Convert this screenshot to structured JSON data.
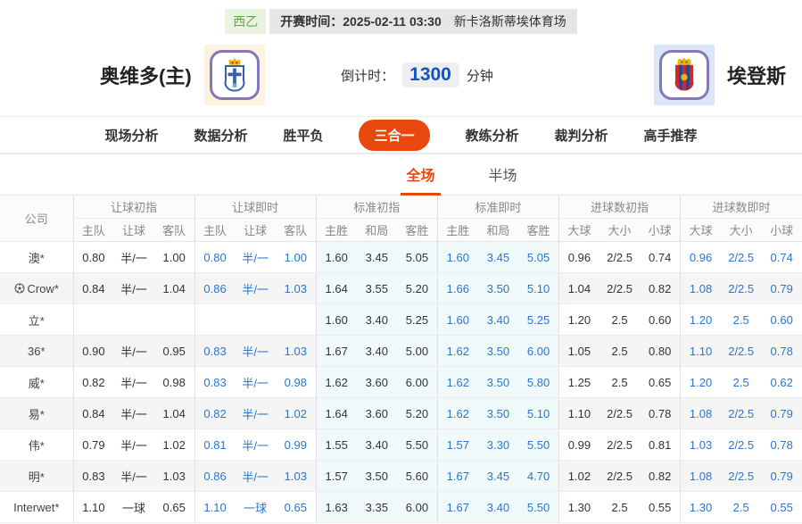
{
  "colors": {
    "accent_orange": "#e8480d",
    "live_blue": "#2b76cb",
    "countdown_blue": "#1353c4",
    "league_green": "#5faa3c",
    "standard_col_bg": "#f0fafa"
  },
  "match_bar": {
    "league": "西乙",
    "kickoff_label": "开赛时间：",
    "kickoff_time": "2025-02-11 03:30",
    "venue": "新卡洛斯蒂埃体育场"
  },
  "teams": {
    "home": {
      "name": "奥维多(主)"
    },
    "away": {
      "name": "埃登斯"
    }
  },
  "countdown": {
    "label": "倒计时：",
    "value": "1300",
    "unit": "分钟"
  },
  "nav_tabs": [
    {
      "label": "现场分析",
      "active": false
    },
    {
      "label": "数据分析",
      "active": false
    },
    {
      "label": "胜平负",
      "active": false
    },
    {
      "label": "三合一",
      "active": true
    },
    {
      "label": "教练分析",
      "active": false
    },
    {
      "label": "裁判分析",
      "active": false
    },
    {
      "label": "高手推荐",
      "active": false
    }
  ],
  "scope_tabs": [
    {
      "label": "全场",
      "active": true
    },
    {
      "label": "半场",
      "active": false
    }
  ],
  "odds_table": {
    "company_header": "公司",
    "groups": [
      {
        "label": "让球初指",
        "cols": [
          "主队",
          "让球",
          "客队"
        ],
        "live": false,
        "cyan": false
      },
      {
        "label": "让球即时",
        "cols": [
          "主队",
          "让球",
          "客队"
        ],
        "live": true,
        "cyan": false
      },
      {
        "label": "标准初指",
        "cols": [
          "主胜",
          "和局",
          "客胜"
        ],
        "live": false,
        "cyan": true
      },
      {
        "label": "标准即时",
        "cols": [
          "主胜",
          "和局",
          "客胜"
        ],
        "live": true,
        "cyan": true
      },
      {
        "label": "进球数初指",
        "cols": [
          "大球",
          "大小",
          "小球"
        ],
        "live": false,
        "cyan": false
      },
      {
        "label": "进球数即时",
        "cols": [
          "大球",
          "大小",
          "小球"
        ],
        "live": true,
        "cyan": false
      }
    ],
    "rows": [
      {
        "company": "澳*",
        "ball_icon": false,
        "odds": [
          [
            "0.80",
            "半/一",
            "1.00"
          ],
          [
            "0.80",
            "半/一",
            "1.00"
          ],
          [
            "1.60",
            "3.45",
            "5.05"
          ],
          [
            "1.60",
            "3.45",
            "5.05"
          ],
          [
            "0.96",
            "2/2.5",
            "0.74"
          ],
          [
            "0.96",
            "2/2.5",
            "0.74"
          ]
        ]
      },
      {
        "company": "Crow*",
        "ball_icon": true,
        "odds": [
          [
            "0.84",
            "半/一",
            "1.04"
          ],
          [
            "0.86",
            "半/一",
            "1.03"
          ],
          [
            "1.64",
            "3.55",
            "5.20"
          ],
          [
            "1.66",
            "3.50",
            "5.10"
          ],
          [
            "1.04",
            "2/2.5",
            "0.82"
          ],
          [
            "1.08",
            "2/2.5",
            "0.79"
          ]
        ]
      },
      {
        "company": "立*",
        "ball_icon": false,
        "odds": [
          [
            "",
            "",
            ""
          ],
          [
            "",
            "",
            ""
          ],
          [
            "1.60",
            "3.40",
            "5.25"
          ],
          [
            "1.60",
            "3.40",
            "5.25"
          ],
          [
            "1.20",
            "2.5",
            "0.60"
          ],
          [
            "1.20",
            "2.5",
            "0.60"
          ]
        ]
      },
      {
        "company": "36*",
        "ball_icon": false,
        "odds": [
          [
            "0.90",
            "半/一",
            "0.95"
          ],
          [
            "0.83",
            "半/一",
            "1.03"
          ],
          [
            "1.67",
            "3.40",
            "5.00"
          ],
          [
            "1.62",
            "3.50",
            "6.00"
          ],
          [
            "1.05",
            "2.5",
            "0.80"
          ],
          [
            "1.10",
            "2/2.5",
            "0.78"
          ]
        ]
      },
      {
        "company": "威*",
        "ball_icon": false,
        "odds": [
          [
            "0.82",
            "半/一",
            "0.98"
          ],
          [
            "0.83",
            "半/一",
            "0.98"
          ],
          [
            "1.62",
            "3.60",
            "6.00"
          ],
          [
            "1.62",
            "3.50",
            "5.80"
          ],
          [
            "1.25",
            "2.5",
            "0.65"
          ],
          [
            "1.20",
            "2.5",
            "0.62"
          ]
        ]
      },
      {
        "company": "易*",
        "ball_icon": false,
        "odds": [
          [
            "0.84",
            "半/一",
            "1.04"
          ],
          [
            "0.82",
            "半/一",
            "1.02"
          ],
          [
            "1.64",
            "3.60",
            "5.20"
          ],
          [
            "1.62",
            "3.50",
            "5.10"
          ],
          [
            "1.10",
            "2/2.5",
            "0.78"
          ],
          [
            "1.08",
            "2/2.5",
            "0.79"
          ]
        ]
      },
      {
        "company": "伟*",
        "ball_icon": false,
        "odds": [
          [
            "0.79",
            "半/一",
            "1.02"
          ],
          [
            "0.81",
            "半/一",
            "0.99"
          ],
          [
            "1.55",
            "3.40",
            "5.50"
          ],
          [
            "1.57",
            "3.30",
            "5.50"
          ],
          [
            "0.99",
            "2/2.5",
            "0.81"
          ],
          [
            "1.03",
            "2/2.5",
            "0.78"
          ]
        ]
      },
      {
        "company": "明*",
        "ball_icon": false,
        "odds": [
          [
            "0.83",
            "半/一",
            "1.03"
          ],
          [
            "0.86",
            "半/一",
            "1.03"
          ],
          [
            "1.57",
            "3.50",
            "5.60"
          ],
          [
            "1.67",
            "3.45",
            "4.70"
          ],
          [
            "1.02",
            "2/2.5",
            "0.82"
          ],
          [
            "1.08",
            "2/2.5",
            "0.79"
          ]
        ]
      },
      {
        "company": "Interwet*",
        "ball_icon": false,
        "odds": [
          [
            "1.10",
            "一球",
            "0.65"
          ],
          [
            "1.10",
            "一球",
            "0.65"
          ],
          [
            "1.63",
            "3.35",
            "6.00"
          ],
          [
            "1.67",
            "3.40",
            "5.50"
          ],
          [
            "1.30",
            "2.5",
            "0.55"
          ],
          [
            "1.30",
            "2.5",
            "0.55"
          ]
        ]
      }
    ]
  }
}
